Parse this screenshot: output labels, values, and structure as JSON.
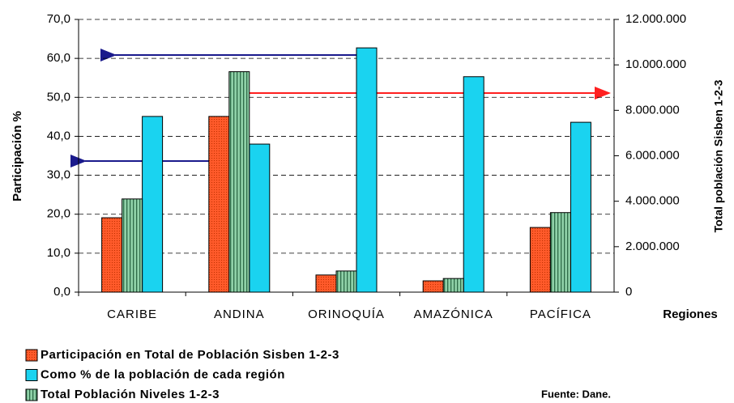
{
  "chart_data": {
    "type": "bar",
    "categories": [
      "CARIBE",
      "ANDINA",
      "ORINOQUÍA",
      "AMAZÓNICA",
      "PACÍFICA"
    ],
    "series": [
      {
        "name": "Participación en Total de Población Sisben 1-2-3",
        "color": "#ff5a2a",
        "values": [
          19.1,
          45.1,
          4.4,
          2.9,
          16.6
        ]
      },
      {
        "name": "Como % de la población de cada región",
        "color": "#1ad3f0",
        "values": [
          45.1,
          38.0,
          62.7,
          55.3,
          43.6
        ]
      },
      {
        "name": "Total Población Niveles 1-2-3",
        "color": "#8fd1a8",
        "axis": "y2",
        "values": [
          4100000,
          9700000,
          930000,
          600000,
          3500000
        ]
      }
    ],
    "ylabel": "Participación %",
    "y2label": "Total población Sisben 1-2-3",
    "xlabel": "Regiones",
    "source": "Fuente: Dane.",
    "ylim": [
      0,
      70
    ],
    "yticks": [
      {
        "value": 0,
        "label": "0,0"
      },
      {
        "value": 10,
        "label": "10,0"
      },
      {
        "value": 20,
        "label": "20,0"
      },
      {
        "value": 30,
        "label": "30,0"
      },
      {
        "value": 40,
        "label": "40,0"
      },
      {
        "value": 50,
        "label": "50,0"
      },
      {
        "value": 60,
        "label": "60,0"
      },
      {
        "value": 70,
        "label": "70,0"
      }
    ],
    "y2lim": [
      0,
      12000000
    ],
    "y2ticks": [
      0,
      {
        "value": 2000000,
        "label": "2.000.000"
      },
      {
        "value": 4000000,
        "label": "4.000.000"
      },
      {
        "value": 6000000,
        "label": "6.000.000"
      },
      {
        "value": 8000000,
        "label": "8.000.000"
      },
      {
        "value": 10000000,
        "label": "10.000.000"
      },
      {
        "value": 12000000,
        "label": "12.000.000"
      }
    ],
    "grid": true
  }
}
